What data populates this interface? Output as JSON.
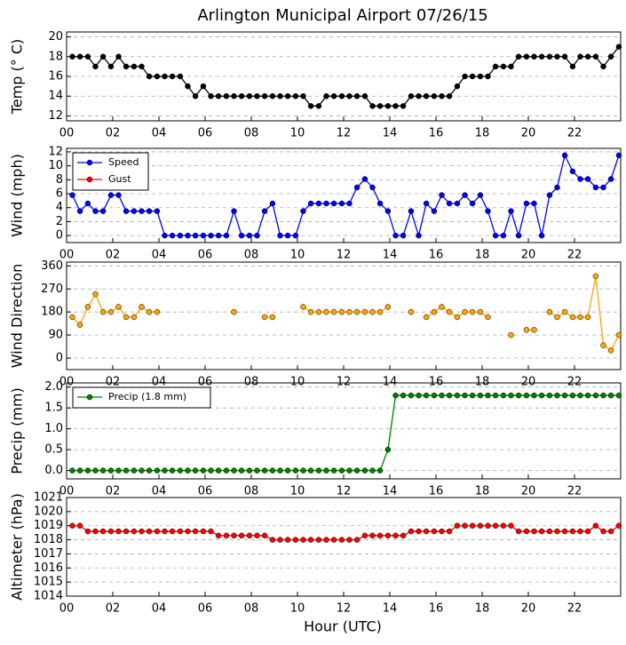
{
  "title": "Arlington Municipal Airport 07/26/15",
  "xlabel": "Hour (UTC)",
  "xlim": [
    0,
    24
  ],
  "xticks": [
    {
      "value": 0,
      "label": "00"
    },
    {
      "value": 2,
      "label": "02"
    },
    {
      "value": 4,
      "label": "04"
    },
    {
      "value": 6,
      "label": "06"
    },
    {
      "value": 8,
      "label": "08"
    },
    {
      "value": 10,
      "label": "10"
    },
    {
      "value": 12,
      "label": "12"
    },
    {
      "value": 14,
      "label": "14"
    },
    {
      "value": 16,
      "label": "16"
    },
    {
      "value": 18,
      "label": "18"
    },
    {
      "value": 20,
      "label": "20"
    },
    {
      "value": 22,
      "label": "22"
    }
  ],
  "x": [
    0.25,
    0.58,
    0.92,
    1.25,
    1.58,
    1.92,
    2.25,
    2.58,
    2.92,
    3.25,
    3.58,
    3.92,
    4.25,
    4.58,
    4.92,
    5.25,
    5.58,
    5.92,
    6.25,
    6.58,
    6.92,
    7.25,
    7.58,
    7.92,
    8.25,
    8.58,
    8.92,
    9.25,
    9.58,
    9.92,
    10.25,
    10.58,
    10.92,
    11.25,
    11.58,
    11.92,
    12.25,
    12.58,
    12.92,
    13.25,
    13.58,
    13.92,
    14.25,
    14.58,
    14.92,
    15.25,
    15.58,
    15.92,
    16.25,
    16.58,
    16.92,
    17.25,
    17.58,
    17.92,
    18.25,
    18.58,
    18.92,
    19.25,
    19.58,
    19.92,
    20.25,
    20.58,
    20.92,
    21.25,
    21.58,
    21.92,
    22.25,
    22.58,
    22.92,
    23.25,
    23.58,
    23.92
  ],
  "chart_data": [
    {
      "type": "line",
      "ylabel": "Temp (° C)",
      "ylim": [
        11.5,
        20.5
      ],
      "yticks": [
        12,
        14,
        16,
        18,
        20
      ],
      "grid": true,
      "series": [
        {
          "color": "#000000",
          "values": [
            18,
            18,
            18,
            17,
            18,
            17,
            18,
            17,
            17,
            17,
            16,
            16,
            16,
            16,
            16,
            15,
            14,
            15,
            14,
            14,
            14,
            14,
            14,
            14,
            14,
            14,
            14,
            14,
            14,
            14,
            14,
            13,
            13,
            14,
            14,
            14,
            14,
            14,
            14,
            13,
            13,
            13,
            13,
            13,
            14,
            14,
            14,
            14,
            14,
            14,
            15,
            16,
            16,
            16,
            16,
            17,
            17,
            17,
            18,
            18,
            18,
            18,
            18,
            18,
            18,
            17,
            18,
            18,
            18,
            17,
            18,
            19
          ]
        }
      ]
    },
    {
      "type": "line",
      "ylabel": "Wind (mph)",
      "ylim": [
        -1,
        12.5
      ],
      "yticks": [
        0,
        2,
        4,
        6,
        8,
        10,
        12
      ],
      "grid": true,
      "legend": "upper left",
      "series": [
        {
          "name": "Speed",
          "color": "#0000ff",
          "values": [
            5.8,
            3.5,
            4.6,
            3.5,
            3.5,
            5.8,
            5.8,
            3.5,
            3.5,
            3.5,
            3.5,
            3.5,
            0,
            0,
            0,
            0,
            0,
            0,
            0,
            0,
            0,
            3.5,
            0,
            0,
            0,
            3.5,
            4.6,
            0,
            0,
            0,
            3.5,
            4.6,
            4.6,
            4.6,
            4.6,
            4.6,
            4.6,
            6.9,
            8.1,
            6.9,
            4.6,
            3.5,
            0,
            0,
            3.5,
            0,
            4.6,
            3.5,
            5.8,
            4.6,
            4.6,
            5.8,
            4.6,
            5.8,
            3.5,
            0,
            0,
            3.5,
            0,
            4.6,
            4.6,
            0,
            5.8,
            6.9,
            11.5,
            9.2,
            8.1,
            8.1,
            6.9,
            6.9,
            8.1,
            11.5
          ]
        },
        {
          "name": "Gust",
          "color": "#ff0000",
          "values": [
            null,
            null,
            null,
            null,
            null,
            null,
            null,
            null,
            null,
            null,
            null,
            null,
            null,
            null,
            null,
            null,
            null,
            null,
            null,
            null,
            null,
            null,
            null,
            null,
            null,
            null,
            null,
            null,
            null,
            null,
            null,
            null,
            null,
            null,
            null,
            null,
            null,
            null,
            null,
            null,
            null,
            null,
            null,
            null,
            null,
            null,
            null,
            null,
            null,
            null,
            null,
            null,
            null,
            null,
            null,
            null,
            null,
            null,
            null,
            null,
            null,
            null,
            null,
            null,
            null,
            null,
            null,
            null,
            null,
            null,
            null,
            null
          ]
        }
      ]
    },
    {
      "type": "line",
      "ylabel": "Wind Direction",
      "ylim": [
        -45,
        375
      ],
      "yticks": [
        0,
        90,
        180,
        270,
        360
      ],
      "grid": true,
      "series": [
        {
          "color": "#ffa500",
          "values": [
            160,
            130,
            200,
            250,
            180,
            180,
            200,
            160,
            160,
            200,
            180,
            180,
            null,
            null,
            null,
            null,
            null,
            null,
            null,
            null,
            null,
            180,
            null,
            null,
            null,
            160,
            160,
            null,
            null,
            null,
            200,
            180,
            180,
            180,
            180,
            180,
            180,
            180,
            180,
            180,
            180,
            200,
            null,
            null,
            180,
            null,
            160,
            180,
            200,
            180,
            160,
            180,
            180,
            180,
            160,
            null,
            null,
            90,
            null,
            110,
            110,
            null,
            180,
            160,
            180,
            160,
            160,
            160,
            320,
            50,
            30,
            90
          ]
        }
      ]
    },
    {
      "type": "line",
      "ylabel": "Precip (mm)",
      "ylim": [
        -0.2,
        2.1
      ],
      "yticks": [
        {
          "value": 0,
          "label": "0.0"
        },
        0.5,
        {
          "value": 1,
          "label": "1.0"
        },
        1.5,
        {
          "value": 2,
          "label": "2.0"
        }
      ],
      "grid": true,
      "legend": "upper left",
      "series": [
        {
          "name": "Precip (1.8 mm)",
          "color": "#008000",
          "values": [
            0,
            0,
            0,
            0,
            0,
            0,
            0,
            0,
            0,
            0,
            0,
            0,
            0,
            0,
            0,
            0,
            0,
            0,
            0,
            0,
            0,
            0,
            0,
            0,
            0,
            0,
            0,
            0,
            0,
            0,
            0,
            0,
            0,
            0,
            0,
            0,
            0,
            0,
            0,
            0,
            0,
            0.5,
            1.8,
            1.8,
            1.8,
            1.8,
            1.8,
            1.8,
            1.8,
            1.8,
            1.8,
            1.8,
            1.8,
            1.8,
            1.8,
            1.8,
            1.8,
            1.8,
            1.8,
            1.8,
            1.8,
            1.8,
            1.8,
            1.8,
            1.8,
            1.8,
            1.8,
            1.8,
            1.8,
            1.8,
            1.8,
            1.8
          ]
        }
      ]
    },
    {
      "type": "line",
      "ylabel": "Altimeter (hPa)",
      "ylim": [
        1014,
        1021
      ],
      "yticks": [
        1014,
        1015,
        1016,
        1017,
        1018,
        1019,
        1020,
        1021
      ],
      "grid": true,
      "series": [
        {
          "color": "#ff0000",
          "values": [
            1019.0,
            1019.0,
            1018.6,
            1018.6,
            1018.6,
            1018.6,
            1018.6,
            1018.6,
            1018.6,
            1018.6,
            1018.6,
            1018.6,
            1018.6,
            1018.6,
            1018.6,
            1018.6,
            1018.6,
            1018.6,
            1018.6,
            1018.3,
            1018.3,
            1018.3,
            1018.3,
            1018.3,
            1018.3,
            1018.3,
            1018.0,
            1018.0,
            1018.0,
            1018.0,
            1018.0,
            1018.0,
            1018.0,
            1018.0,
            1018.0,
            1018.0,
            1018.0,
            1018.0,
            1018.3,
            1018.3,
            1018.3,
            1018.3,
            1018.3,
            1018.3,
            1018.6,
            1018.6,
            1018.6,
            1018.6,
            1018.6,
            1018.6,
            1019.0,
            1019.0,
            1019.0,
            1019.0,
            1019.0,
            1019.0,
            1019.0,
            1019.0,
            1018.6,
            1018.6,
            1018.6,
            1018.6,
            1018.6,
            1018.6,
            1018.6,
            1018.6,
            1018.6,
            1018.6,
            1019.0,
            1018.6,
            1018.6,
            1019.0
          ]
        }
      ]
    }
  ]
}
